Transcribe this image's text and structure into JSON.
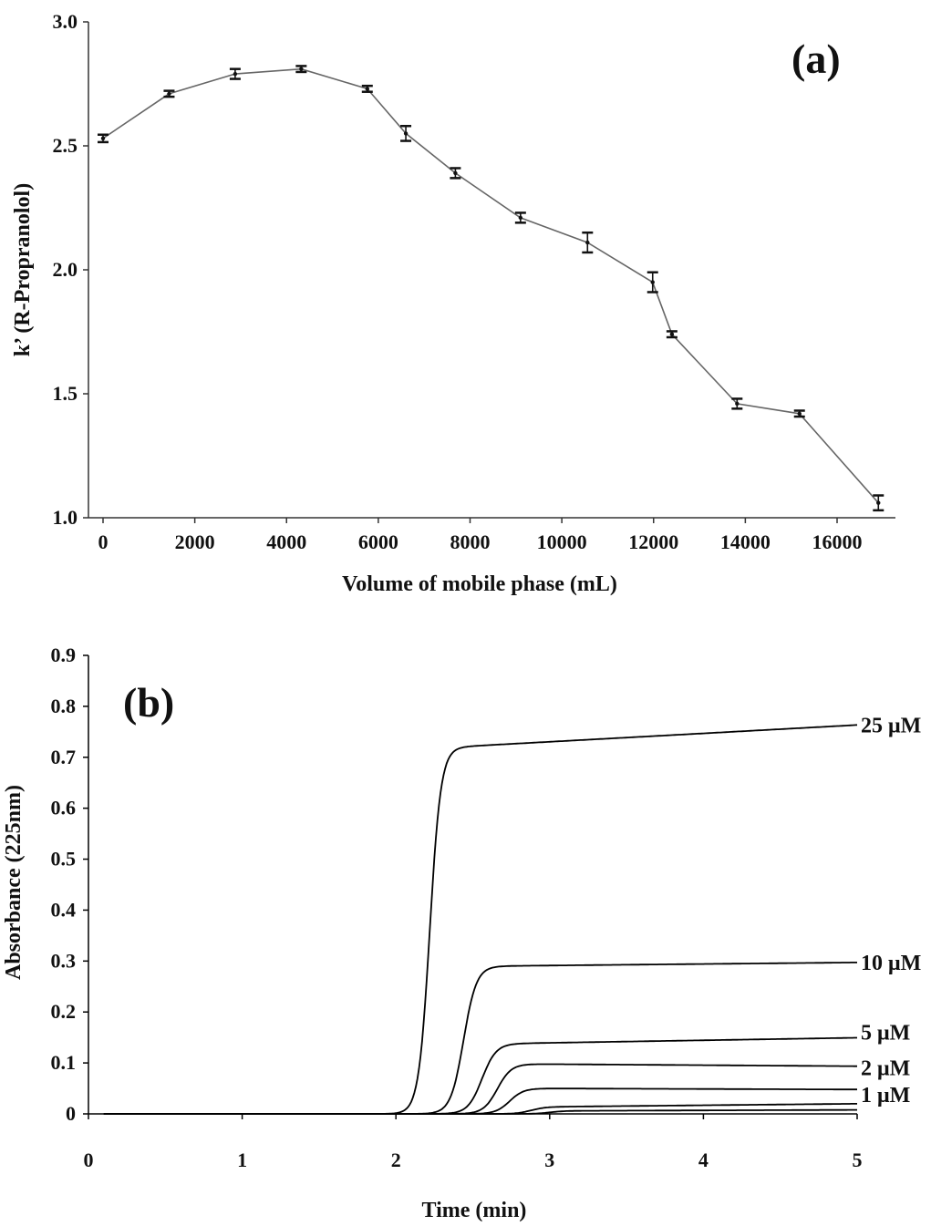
{
  "chart_data": [
    {
      "panel_label": "(a)",
      "type": "line",
      "xlabel": "Volume of mobile phase (mL)",
      "ylabel": "k’ (R-Propranolol)",
      "xlim": [
        -250,
        17500
      ],
      "ylim": [
        1.0,
        3.0
      ],
      "xticks": [
        "0",
        "2000",
        "4000",
        "6000",
        "8000",
        "10000",
        "12000",
        "14000",
        "16000"
      ],
      "yticks": [
        "1.0",
        "1.5",
        "2.0",
        "2.5",
        "3.0"
      ],
      "series": [
        {
          "x": [
            0,
            1440,
            2880,
            4320,
            5760,
            6600,
            7680,
            9100,
            10560,
            11980,
            12400,
            13820,
            15180,
            16900
          ],
          "y": [
            2.53,
            2.71,
            2.79,
            2.81,
            2.73,
            2.55,
            2.39,
            2.21,
            2.11,
            1.95,
            1.74,
            1.46,
            1.42,
            1.06
          ],
          "error": [
            0.015,
            0.01,
            0.02,
            0.01,
            0.01,
            0.03,
            0.02,
            0.02,
            0.04,
            0.04,
            0.01,
            0.02,
            0.01,
            0.03
          ]
        }
      ],
      "color": "#666666"
    },
    {
      "panel_label": "(b)",
      "type": "line",
      "xlabel": "Time (min)",
      "ylabel": "Absorbance (225nm)",
      "xlim": [
        0,
        5
      ],
      "ylim": [
        0,
        0.9
      ],
      "xticks": [
        "0",
        "1",
        "2",
        "3",
        "4",
        "5"
      ],
      "yticks": [
        "0",
        "0.1",
        "0.2",
        "0.3",
        "0.4",
        "0.5",
        "0.6",
        "0.7",
        "0.8",
        "0.9"
      ],
      "series": [
        {
          "name": "25 μM",
          "t0": 2.22,
          "k": 28,
          "plateau": 0.72,
          "slope": 0.0165
        },
        {
          "name": "10 μM",
          "t0": 2.44,
          "k": 24,
          "plateau": 0.29,
          "slope": 0.003
        },
        {
          "name": "5 μM",
          "t0": 2.56,
          "k": 22,
          "plateau": 0.138,
          "slope": 0.005
        },
        {
          "name": "2 μM",
          "t0": 2.66,
          "k": 22,
          "plateau": 0.098,
          "slope": -0.002
        },
        {
          "name": "1 μM",
          "t0": 2.74,
          "k": 22,
          "plateau": 0.05,
          "slope": -0.001
        },
        {
          "t0": 2.88,
          "k": 22,
          "plateau": 0.014,
          "slope": 0.003
        },
        {
          "t0": 3.0,
          "k": 22,
          "plateau": 0.006,
          "slope": 0.001
        }
      ],
      "color": "#000000"
    }
  ]
}
